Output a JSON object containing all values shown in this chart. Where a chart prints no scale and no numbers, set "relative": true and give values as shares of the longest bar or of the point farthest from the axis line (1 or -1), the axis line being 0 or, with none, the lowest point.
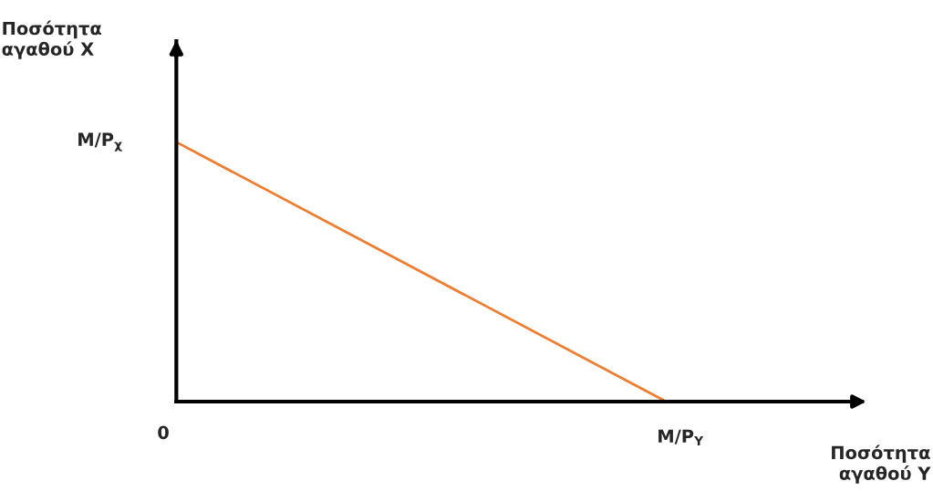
{
  "chart_data": {
    "type": "line",
    "xlabel": "Ποσότητα\nαγαθού Y",
    "categories": [
      null,
      null
    ],
    "series": [
      {
        "color": "#ed7d31",
        "values": [
          1,
          0
        ]
      }
    ],
    "relative": true,
    "annotations": [
      "Ποσότητα\nαγαθού X",
      "M/P$_{χ}$",
      "0",
      "M/P$_{Y}$"
    ],
    "grid": false,
    "legend": false,
    "marker": "none",
    "line_style": "solid"
  }
}
